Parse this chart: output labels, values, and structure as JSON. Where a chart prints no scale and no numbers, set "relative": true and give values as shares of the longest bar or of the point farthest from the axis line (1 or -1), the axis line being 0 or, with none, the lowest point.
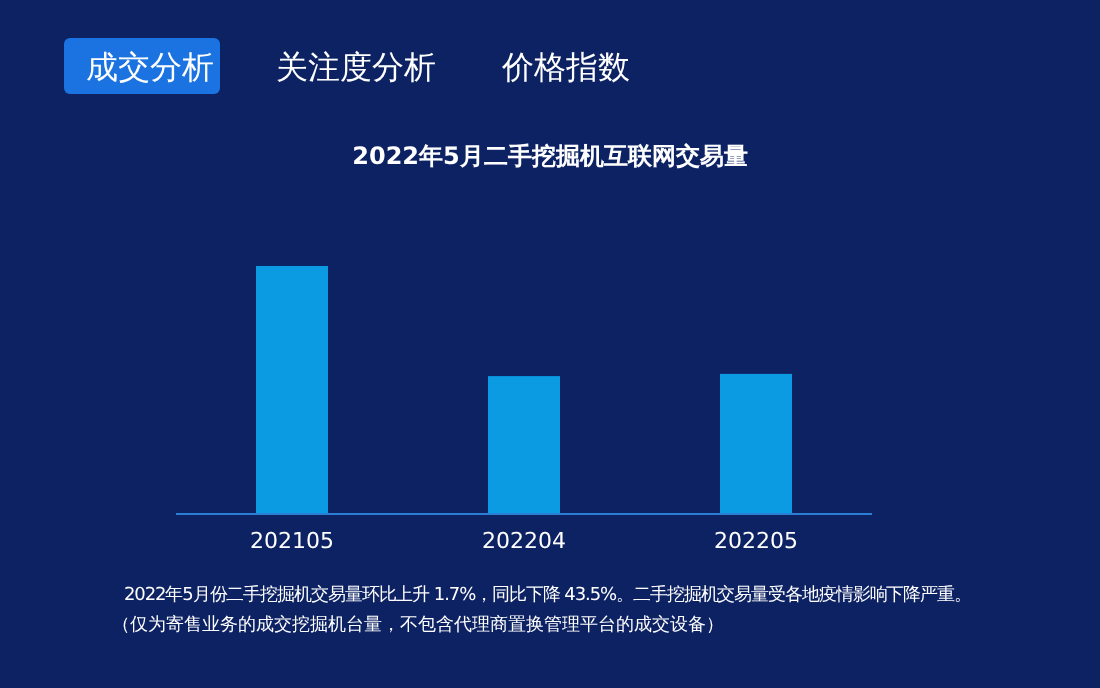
{
  "chart_data": {
    "type": "bar",
    "title": "2022年5月二手挖掘机互联网交易量",
    "categories": [
      "202105",
      "202204",
      "202205"
    ],
    "relative": true,
    "series": [
      {
        "color": "#0a9be3",
        "values": [
          1,
          0.556,
          0.565
        ]
      }
    ],
    "annotations": [
      "成交分析",
      "关注度分析",
      "价格指数",
      "2022年5月份二手挖掘机交易量环比上升 1.7%，同比下降 43.5%。二手挖掘机交易量受各地疫情影响下降严重。",
      "（仅为寄售业务的成交挖掘机台量，不包含代理商置换管理平台的成交设备）"
    ]
  }
}
